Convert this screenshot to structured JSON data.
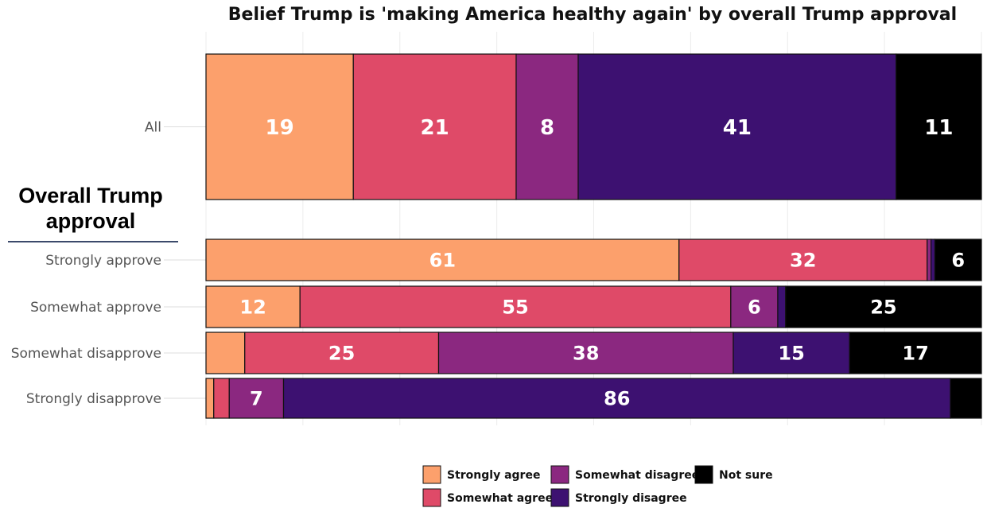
{
  "chart_data": {
    "type": "bar",
    "orientation": "horizontal",
    "stacked": true,
    "title": "Belief Trump is 'making America healthy again' by overall Trump approval",
    "group_label": "Overall Trump approval",
    "categories": [
      "All",
      "Strongly approve",
      "Somewhat approve",
      "Somewhat disapprove",
      "Strongly disapprove"
    ],
    "series": [
      {
        "name": "Strongly agree",
        "color": "#fca06c",
        "values": [
          19,
          61,
          12,
          5,
          1
        ]
      },
      {
        "name": "Somewhat agree",
        "color": "#df4a68",
        "values": [
          21,
          32,
          55,
          25,
          2
        ]
      },
      {
        "name": "Somewhat disagree",
        "color": "#8b2880",
        "values": [
          8,
          0.5,
          6,
          38,
          7
        ]
      },
      {
        "name": "Strongly disagree",
        "color": "#3d1171",
        "values": [
          41,
          0.5,
          1,
          15,
          86
        ]
      },
      {
        "name": "Not sure",
        "color": "#000000",
        "values": [
          11,
          6,
          25,
          17,
          4
        ]
      }
    ],
    "show_label_min": 6,
    "xlim": [
      0,
      100
    ],
    "grid": true,
    "legend_position": "bottom"
  }
}
